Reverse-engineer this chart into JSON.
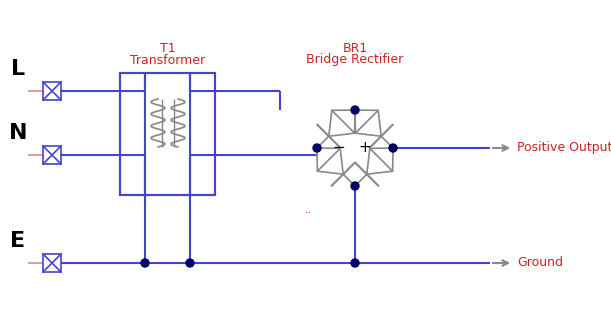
{
  "bg_color": "#ffffff",
  "blue": "#4444cc",
  "wire_blue": "#4444cc",
  "red": "#cc2222",
  "gray": "#888888",
  "dot_color": "#000066",
  "L_label": "L",
  "N_label": "N",
  "E_label": "E",
  "T1_label": "T1",
  "Transformer_label": "Transformer",
  "BR1_label": "BR1",
  "BridgeRectifier_label": "Bridge Rectifier",
  "positive_output_label": "Positive Output",
  "ground_label": "Ground",
  "dots_label": "..",
  "figw": 6.11,
  "figh": 3.32,
  "dpi": 100
}
